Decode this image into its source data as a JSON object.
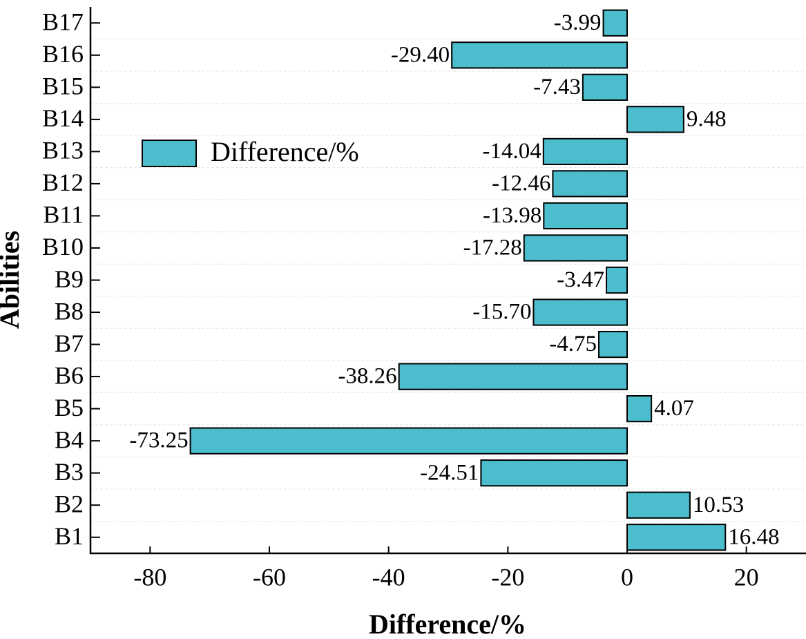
{
  "chart_data": {
    "type": "barh",
    "categories": [
      "B1",
      "B2",
      "B3",
      "B4",
      "B5",
      "B6",
      "B7",
      "B8",
      "B9",
      "B10",
      "B11",
      "B12",
      "B13",
      "B14",
      "B15",
      "B16",
      "B17"
    ],
    "series": [
      {
        "name": "Difference/%",
        "color": "#4bbdcc",
        "values": [
          16.48,
          10.53,
          -24.51,
          -73.25,
          4.07,
          -38.26,
          -4.75,
          -15.7,
          -3.47,
          -17.28,
          -13.98,
          -12.46,
          -14.04,
          9.48,
          -7.43,
          -29.4,
          -3.99
        ],
        "value_labels": [
          "16.48",
          "10.53",
          "-24.51",
          "-73.25",
          "4.07",
          "-38.26",
          "-4.75",
          "-15.70",
          "-3.47",
          "-17.28",
          "-13.98",
          "-12.46",
          "-14.04",
          "9.48",
          "-7.43",
          "-29.40",
          "-3.99"
        ]
      }
    ],
    "xlabel": "Difference/%",
    "ylabel": "Abilities",
    "xlim": [
      -90,
      30
    ],
    "xticks": [
      -80,
      -60,
      -40,
      -20,
      0,
      20
    ]
  }
}
